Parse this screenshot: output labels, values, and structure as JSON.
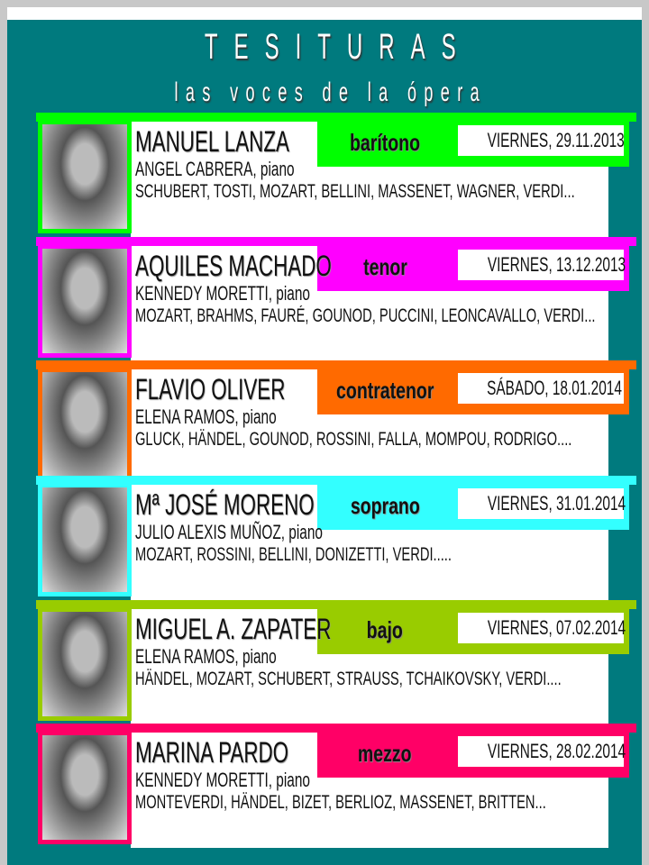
{
  "header": {
    "title": "TESITURAS",
    "subtitle": "las voces de la ópera"
  },
  "concerts": [
    {
      "singer": "MANUEL LANZA",
      "voice": "barítono",
      "date": "VIERNES, 29.11.2013",
      "pianist": "ANGEL CABRERA, piano",
      "composers": "SCHUBERT, TOSTI, MOZART, BELLINI, MASSENET, WAGNER, VERDI...",
      "color": "#00ff00"
    },
    {
      "singer": "AQUILES MACHADO",
      "voice": "tenor",
      "date": "VIERNES, 13.12.2013",
      "pianist": "KENNEDY MORETTI, piano",
      "composers": "MOZART, BRAHMS, FAURÉ, GOUNOD, PUCCINI, LEONCAVALLO, VERDI...",
      "color": "#ff00ff"
    },
    {
      "singer": "FLAVIO OLIVER",
      "voice": "contratenor",
      "date": "SÁBADO, 18.01.2014",
      "pianist": "ELENA RAMOS, piano",
      "composers": "GLUCK, HÄNDEL, GOUNOD, ROSSINI, FALLA, MOMPOU, RODRIGO....",
      "color": "#ff6a00"
    },
    {
      "singer": "Mª JOSÉ MORENO",
      "voice": "soprano",
      "date": "VIERNES, 31.01.2014",
      "pianist": "JULIO ALEXIS MUÑOZ, piano",
      "composers": "MOZART, ROSSINI, BELLINI, DONIZETTI, VERDI.....",
      "color": "#33ffff"
    },
    {
      "singer": "MIGUEL A. ZAPATER",
      "voice": "bajo",
      "date": "VIERNES, 07.02.2014",
      "pianist": "ELENA RAMOS, piano",
      "composers": "HÄNDEL, MOZART, SCHUBERT, STRAUSS, TCHAIKOVSKY, VERDI....",
      "color": "#99cc00"
    },
    {
      "singer": "MARINA PARDO",
      "voice": "mezzo",
      "date": "VIERNES, 28.02.2014",
      "pianist": "KENNEDY MORETTI, piano",
      "composers": "MONTEVERDI, HÄNDEL, BIZET, BERLIOZ, MASSENET, BRITTEN...",
      "color": "#ff0066"
    }
  ]
}
